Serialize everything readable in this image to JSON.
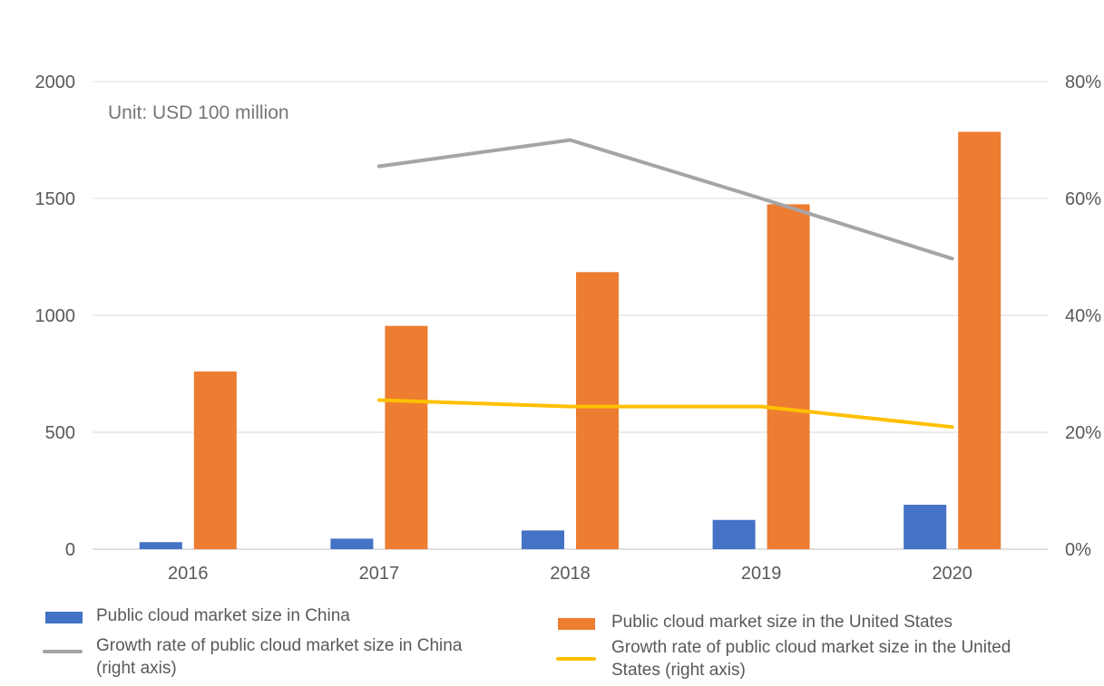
{
  "chart_data": {
    "type": "bar",
    "categories": [
      "2016",
      "2017",
      "2018",
      "2019",
      "2020"
    ],
    "annotation": "Unit: USD 100 million",
    "y_left": {
      "min": 0,
      "max": 2000,
      "ticks": [
        "0",
        "500",
        "1000",
        "1500",
        "2000"
      ]
    },
    "y_right": {
      "min": 0,
      "max": 0.8,
      "ticks": [
        "0%",
        "20%",
        "40%",
        "60%",
        "80%"
      ]
    },
    "grid": true,
    "legend_position": "bottom",
    "series": [
      {
        "name": "Public cloud market size in China",
        "kind": "bar",
        "axis": "left",
        "color": "#4472C4",
        "values": [
          30,
          45,
          80,
          125,
          190
        ]
      },
      {
        "name": "Public cloud market size in the United States",
        "kind": "bar",
        "axis": "left",
        "color": "#ED7D31",
        "values": [
          760,
          955,
          1185,
          1475,
          1785
        ]
      },
      {
        "name": "Growth rate of public cloud market size in China (right axis)",
        "kind": "line",
        "axis": "right",
        "color": "#A5A5A5",
        "values": [
          null,
          0.655,
          0.7,
          0.6,
          0.497
        ]
      },
      {
        "name": "Growth rate of public cloud market size in the United States (right axis)",
        "kind": "line",
        "axis": "right",
        "color": "#FFC000",
        "values": [
          null,
          0.255,
          0.244,
          0.244,
          0.209
        ]
      }
    ]
  },
  "legend": {
    "china_bar": {
      "line1": "Public cloud market size in China"
    },
    "us_bar": {
      "line1": "Public cloud market size in the United States"
    },
    "china_line": {
      "line1": "Growth rate of public cloud market size in China",
      "line2": "(right axis)"
    },
    "us_line": {
      "line1": "Growth rate of public cloud market size in the United",
      "line2": "States (right axis)"
    }
  }
}
